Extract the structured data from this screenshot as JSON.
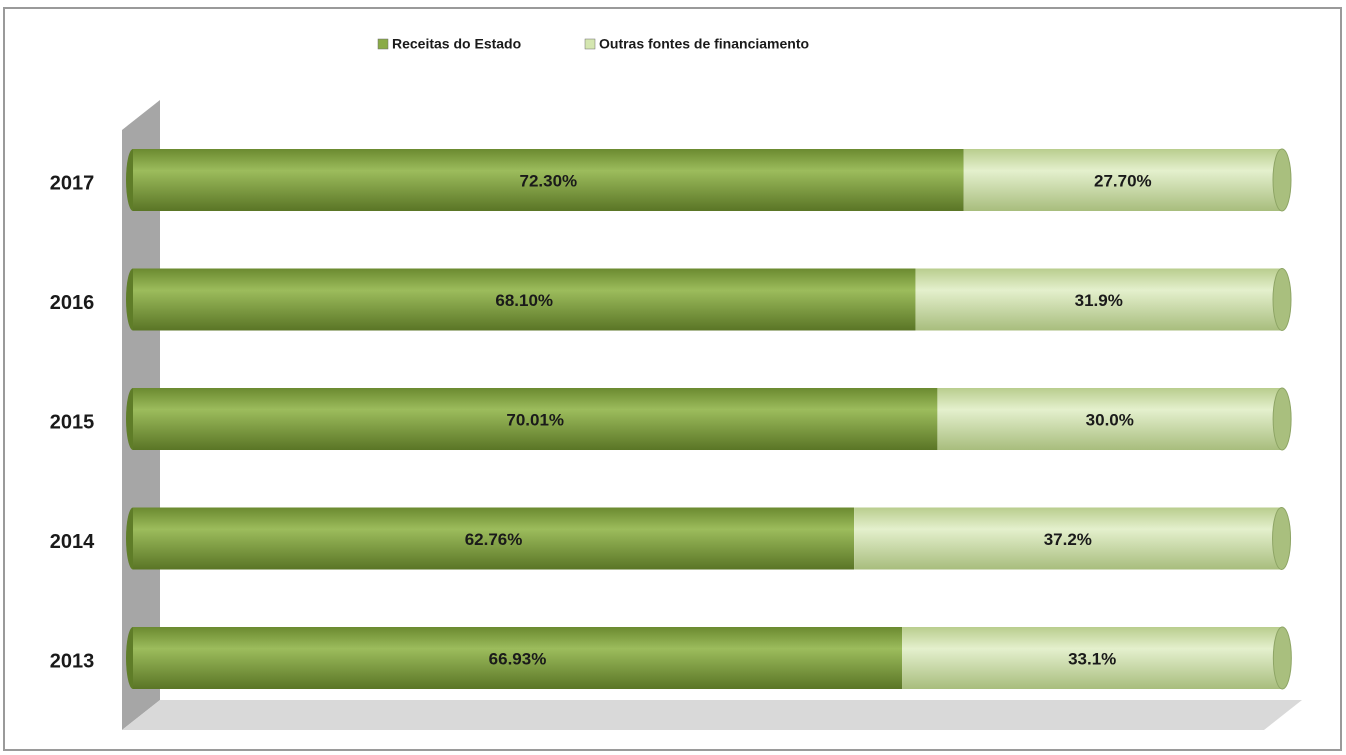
{
  "chart_data": {
    "type": "bar",
    "orientation": "horizontal",
    "stacked": true,
    "categories": [
      "2013",
      "2014",
      "2015",
      "2016",
      "2017"
    ],
    "series": [
      {
        "name": "Receitas do Estado",
        "color": "#8aab47",
        "values": [
          66.93,
          62.76,
          70.01,
          68.1,
          72.3
        ],
        "value_labels": [
          "66.93%",
          "62.76%",
          "70.01%",
          "68.10%",
          "72.30%"
        ]
      },
      {
        "name": "Outras fontes de financiamento",
        "color": "#d4e6b0",
        "values": [
          33.1,
          37.2,
          30.0,
          31.9,
          27.7
        ],
        "value_labels": [
          "33.1%",
          "37.2%",
          "30.0%",
          "31.9%",
          "27.70%"
        ]
      }
    ],
    "xlim": [
      0,
      100
    ],
    "legend": "top"
  }
}
